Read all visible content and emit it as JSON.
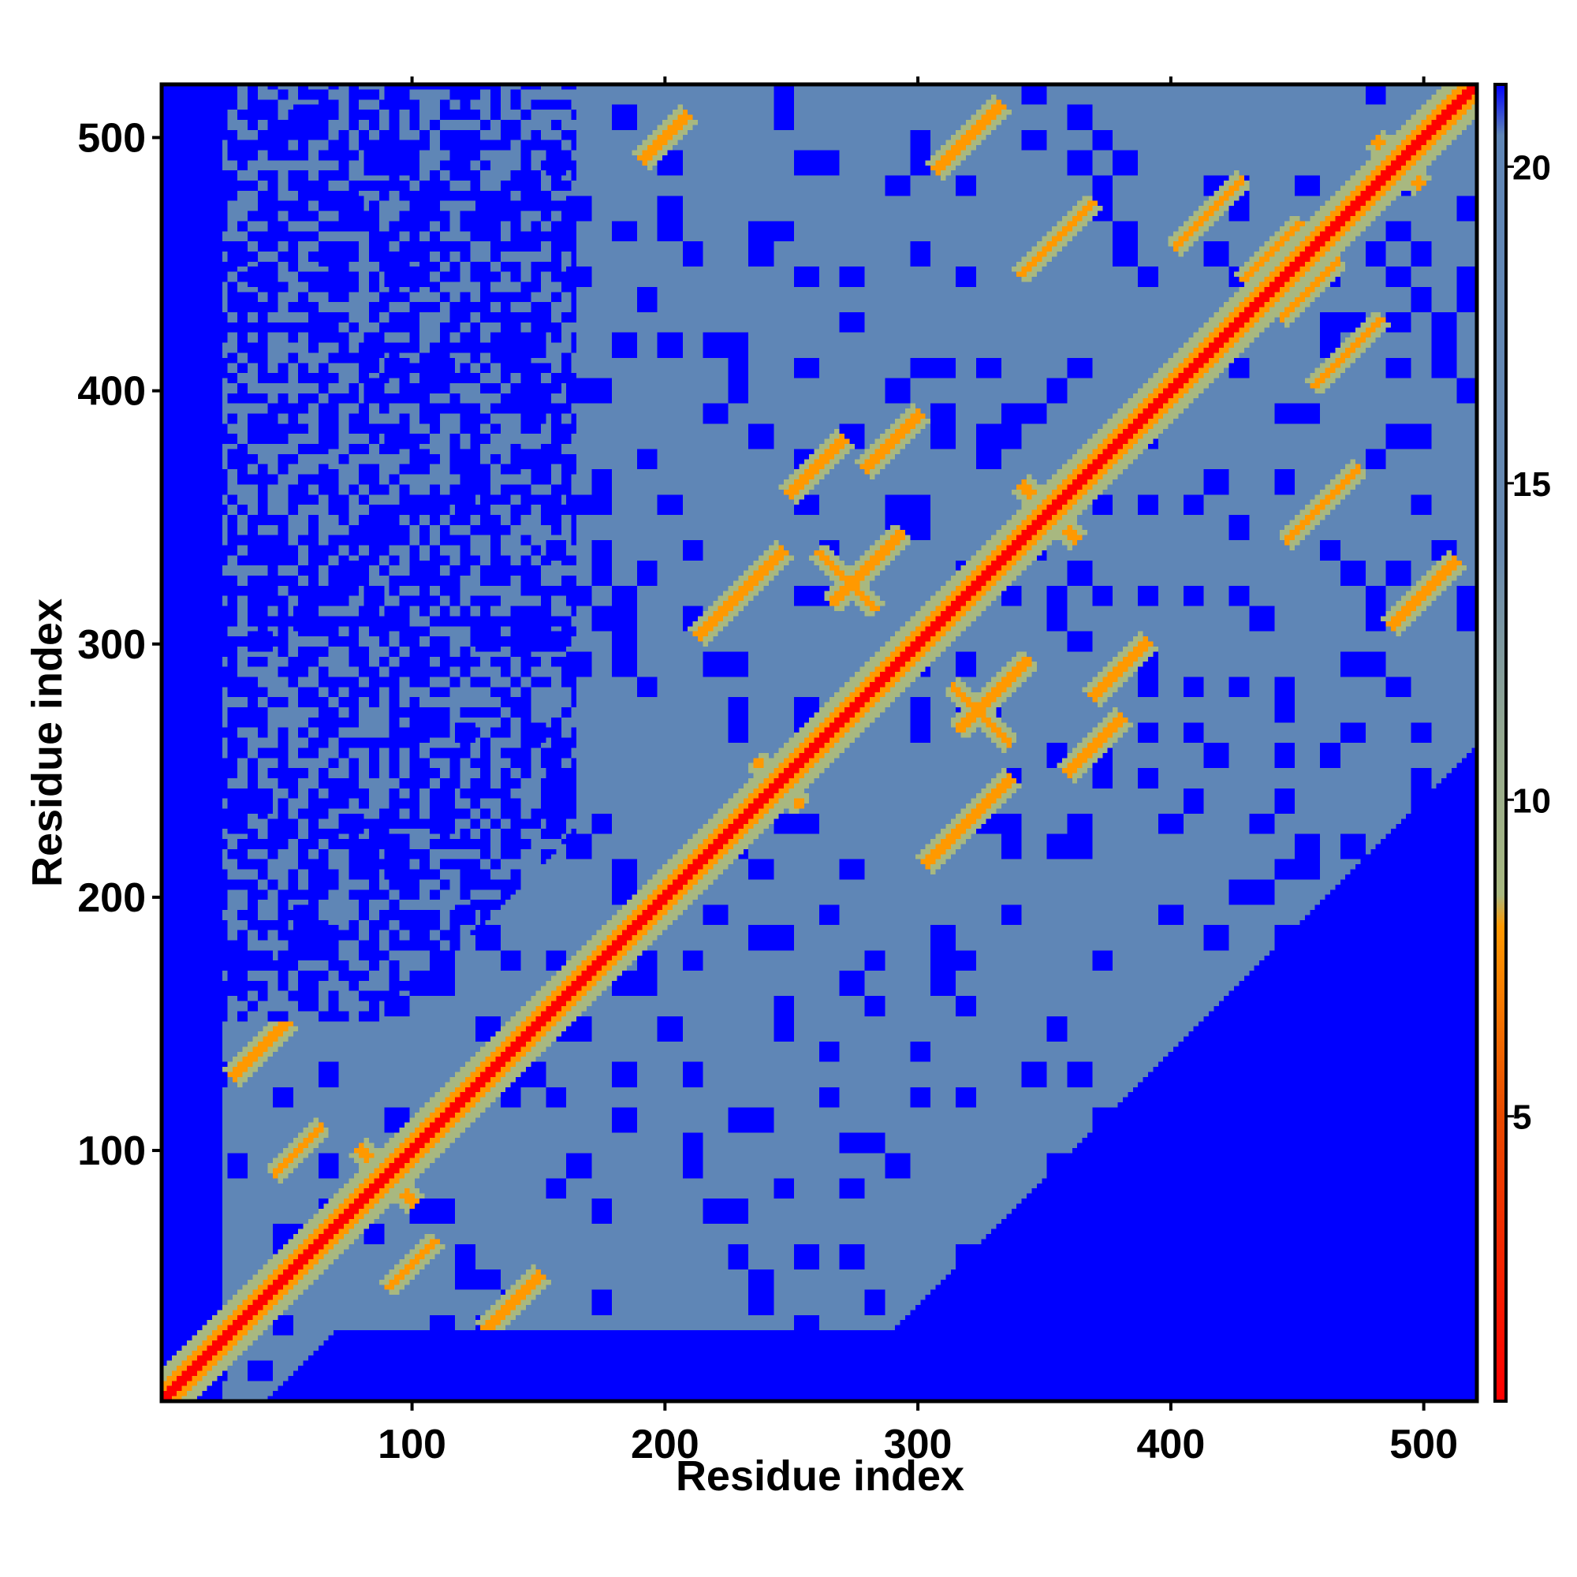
{
  "chart_data": {
    "type": "heatmap",
    "title": "",
    "xlabel": "Residue index",
    "ylabel": "Residue index",
    "xlim": [
      1,
      521
    ],
    "ylim": [
      1,
      521
    ],
    "x_ticks": [
      100,
      200,
      300,
      400,
      500
    ],
    "y_ticks": [
      100,
      200,
      300,
      400,
      500
    ],
    "colorbar": {
      "ticks": [
        5,
        10,
        15,
        20
      ],
      "range": [
        0.5,
        21.3
      ],
      "stops": [
        {
          "value": 0.5,
          "color": "#ff0000"
        },
        {
          "value": 5,
          "color": "#e84a00"
        },
        {
          "value": 8,
          "color": "#ff9900"
        },
        {
          "value": 8.5,
          "color": "#a8b880"
        },
        {
          "value": 11,
          "color": "#94a890"
        },
        {
          "value": 14,
          "color": "#6688b0"
        },
        {
          "value": 20.5,
          "color": "#5f86b6"
        },
        {
          "value": 21.3,
          "color": "#0000ff"
        }
      ]
    },
    "colors": {
      "out_of_range": "#0000ff",
      "background_distance": "#5f86b6",
      "mid_distance": "#a8b880",
      "close_distance": "#ff9900",
      "contact": "#ff0000"
    },
    "matrix_description_values": {
      "matrix_size": 521,
      "high_confidence_region_lower": [
        [
          25,
          520
        ],
        [
          100,
          300
        ],
        [
          330,
          190
        ]
      ],
      "diagonal_band_distance": 1
    },
    "contact_features": [
      {
        "kind": "antiparallel",
        "center": [
          90,
          90
        ],
        "half_len": 12
      },
      {
        "kind": "antiparallel",
        "center": [
          272,
          325
        ],
        "half_len": 12
      },
      {
        "kind": "antiparallel",
        "center": [
          245,
          245
        ],
        "half_len": 10
      },
      {
        "kind": "antiparallel",
        "center": [
          352,
          352
        ],
        "half_len": 12
      },
      {
        "kind": "antiparallel",
        "center": [
          490,
          490
        ],
        "half_len": 10
      },
      {
        "kind": "parallel",
        "center": [
          175,
          170
        ],
        "half_len": 15
      },
      {
        "kind": "parallel",
        "center": [
          230,
          320
        ],
        "half_len": 18
      },
      {
        "kind": "parallel",
        "center": [
          280,
          330
        ],
        "half_len": 15
      },
      {
        "kind": "parallel",
        "center": [
          310,
          305
        ],
        "half_len": 12
      },
      {
        "kind": "parallel",
        "center": [
          320,
          500
        ],
        "half_len": 14
      },
      {
        "kind": "parallel",
        "center": [
          200,
          500
        ],
        "half_len": 10
      },
      {
        "kind": "parallel",
        "center": [
          415,
          470
        ],
        "half_len": 14
      },
      {
        "kind": "parallel",
        "center": [
          460,
          355
        ],
        "half_len": 15
      },
      {
        "kind": "parallel",
        "center": [
          380,
          290
        ],
        "half_len": 12
      },
      {
        "kind": "parallel",
        "center": [
          455,
          440
        ],
        "half_len": 12
      },
      {
        "kind": "parallel",
        "center": [
          140,
          40
        ],
        "half_len": 12
      },
      {
        "kind": "parallel",
        "center": [
          55,
          100
        ],
        "half_len": 10
      },
      {
        "kind": "parallel",
        "center": [
          330,
          280
        ],
        "half_len": 10
      },
      {
        "kind": "parallel",
        "center": [
          370,
          260
        ],
        "half_len": 12
      }
    ]
  }
}
